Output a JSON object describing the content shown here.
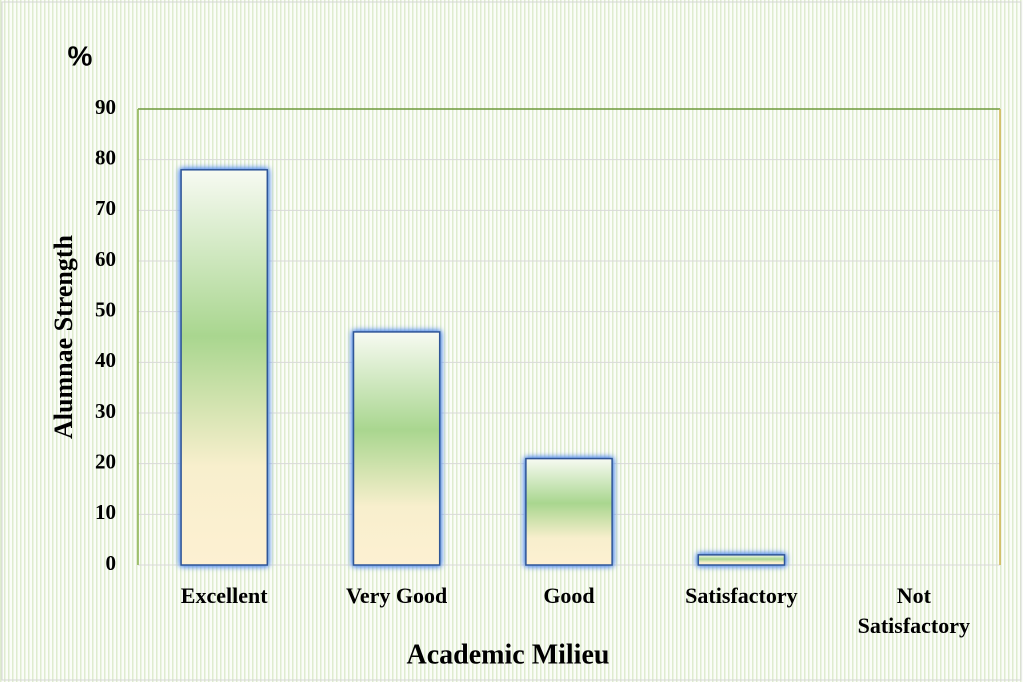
{
  "chart_data": {
    "type": "bar",
    "annotation": "%",
    "xlabel": "Academic Milieu",
    "ylabel": "Alumnae Strength",
    "categories": [
      "Excellent",
      "Very Good",
      "Good",
      "Satisfactory",
      "Not Satisfactory"
    ],
    "values": [
      78,
      46,
      21,
      2,
      0
    ],
    "ylim": [
      0,
      90
    ],
    "yticks": [
      0,
      10,
      20,
      30,
      40,
      50,
      60,
      70,
      80,
      90
    ],
    "grid": true
  }
}
